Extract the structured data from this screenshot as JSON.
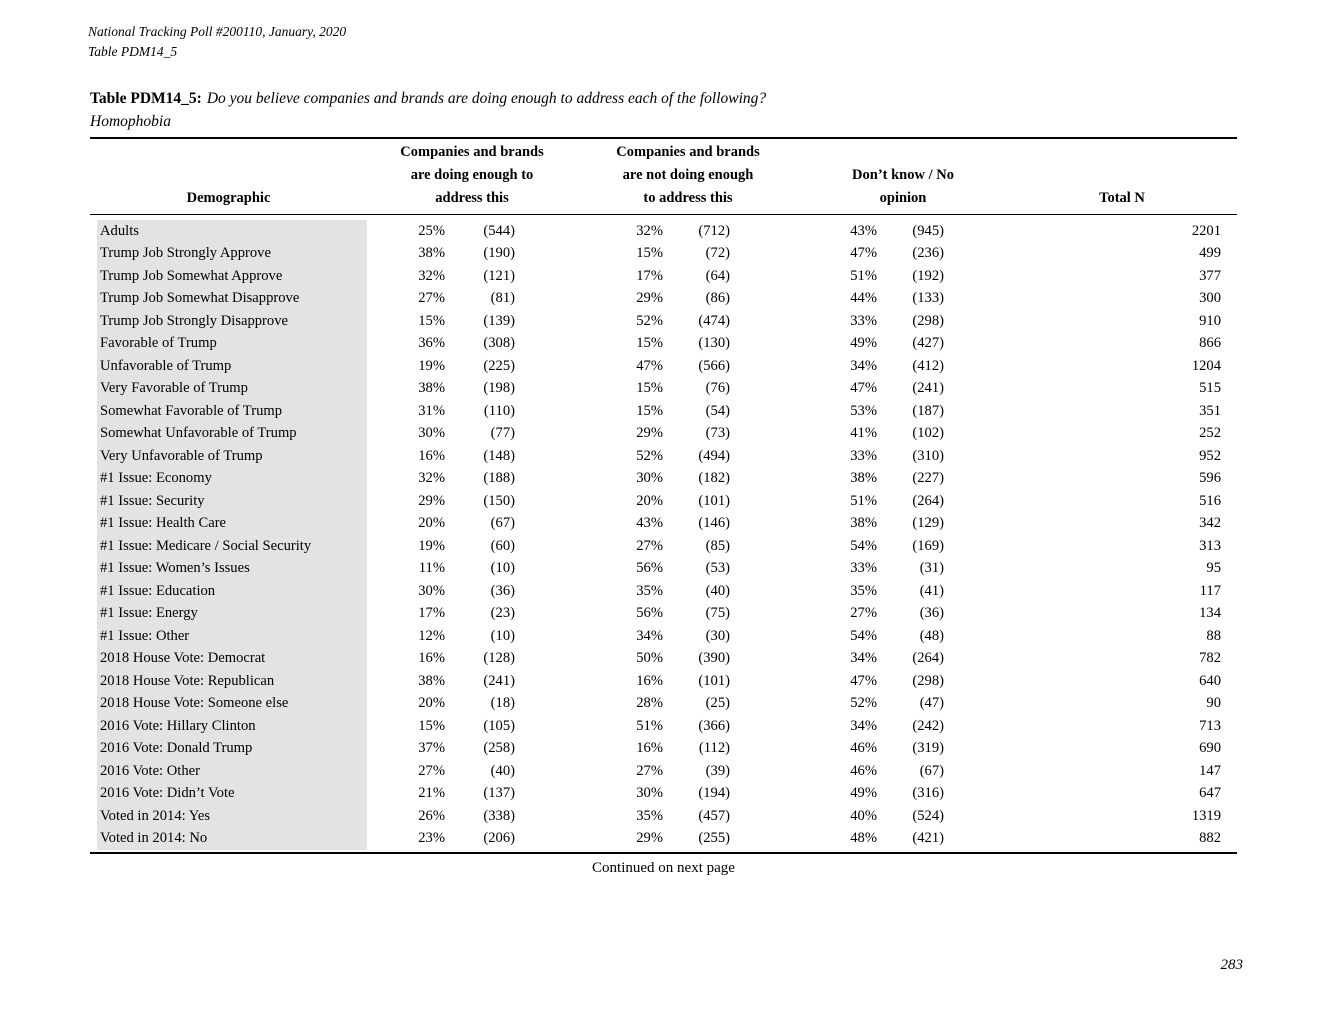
{
  "page": {
    "header_line1": "National Tracking Poll #200110, January, 2020",
    "header_line2": "Table PDM14_5",
    "title_prefix": "Table PDM14_5:",
    "title_question": "Do you believe companies and brands are doing enough to address each of the following?",
    "title_topic": "Homophobia",
    "continued": "Continued on next page",
    "page_number": "283"
  },
  "table": {
    "columns": {
      "demographic": "Demographic",
      "col1": "Companies and brands\nare doing enough to\naddress this",
      "col2": "Companies and brands\nare not doing enough\nto address this",
      "col3": "Don’t know / No\nopinion",
      "total": "Total N"
    },
    "rows": [
      {
        "demographic": "Adults",
        "pct1": "25%",
        "n1": "(544)",
        "pct2": "32%",
        "n2": "(712)",
        "pct3": "43%",
        "n3": "(945)",
        "total": "2201"
      },
      {
        "demographic": "Trump Job Strongly Approve",
        "pct1": "38%",
        "n1": "(190)",
        "pct2": "15%",
        "n2": "(72)",
        "pct3": "47%",
        "n3": "(236)",
        "total": "499"
      },
      {
        "demographic": "Trump Job Somewhat Approve",
        "pct1": "32%",
        "n1": "(121)",
        "pct2": "17%",
        "n2": "(64)",
        "pct3": "51%",
        "n3": "(192)",
        "total": "377"
      },
      {
        "demographic": "Trump Job Somewhat Disapprove",
        "pct1": "27%",
        "n1": "(81)",
        "pct2": "29%",
        "n2": "(86)",
        "pct3": "44%",
        "n3": "(133)",
        "total": "300"
      },
      {
        "demographic": "Trump Job Strongly Disapprove",
        "pct1": "15%",
        "n1": "(139)",
        "pct2": "52%",
        "n2": "(474)",
        "pct3": "33%",
        "n3": "(298)",
        "total": "910"
      },
      {
        "demographic": "Favorable of Trump",
        "pct1": "36%",
        "n1": "(308)",
        "pct2": "15%",
        "n2": "(130)",
        "pct3": "49%",
        "n3": "(427)",
        "total": "866"
      },
      {
        "demographic": "Unfavorable of Trump",
        "pct1": "19%",
        "n1": "(225)",
        "pct2": "47%",
        "n2": "(566)",
        "pct3": "34%",
        "n3": "(412)",
        "total": "1204"
      },
      {
        "demographic": "Very Favorable of Trump",
        "pct1": "38%",
        "n1": "(198)",
        "pct2": "15%",
        "n2": "(76)",
        "pct3": "47%",
        "n3": "(241)",
        "total": "515"
      },
      {
        "demographic": "Somewhat Favorable of Trump",
        "pct1": "31%",
        "n1": "(110)",
        "pct2": "15%",
        "n2": "(54)",
        "pct3": "53%",
        "n3": "(187)",
        "total": "351"
      },
      {
        "demographic": "Somewhat Unfavorable of Trump",
        "pct1": "30%",
        "n1": "(77)",
        "pct2": "29%",
        "n2": "(73)",
        "pct3": "41%",
        "n3": "(102)",
        "total": "252"
      },
      {
        "demographic": "Very Unfavorable of Trump",
        "pct1": "16%",
        "n1": "(148)",
        "pct2": "52%",
        "n2": "(494)",
        "pct3": "33%",
        "n3": "(310)",
        "total": "952"
      },
      {
        "demographic": "#1 Issue: Economy",
        "pct1": "32%",
        "n1": "(188)",
        "pct2": "30%",
        "n2": "(182)",
        "pct3": "38%",
        "n3": "(227)",
        "total": "596"
      },
      {
        "demographic": "#1 Issue: Security",
        "pct1": "29%",
        "n1": "(150)",
        "pct2": "20%",
        "n2": "(101)",
        "pct3": "51%",
        "n3": "(264)",
        "total": "516"
      },
      {
        "demographic": "#1 Issue: Health Care",
        "pct1": "20%",
        "n1": "(67)",
        "pct2": "43%",
        "n2": "(146)",
        "pct3": "38%",
        "n3": "(129)",
        "total": "342"
      },
      {
        "demographic": "#1 Issue: Medicare / Social Security",
        "pct1": "19%",
        "n1": "(60)",
        "pct2": "27%",
        "n2": "(85)",
        "pct3": "54%",
        "n3": "(169)",
        "total": "313"
      },
      {
        "demographic": "#1 Issue: Women’s Issues",
        "pct1": "11%",
        "n1": "(10)",
        "pct2": "56%",
        "n2": "(53)",
        "pct3": "33%",
        "n3": "(31)",
        "total": "95"
      },
      {
        "demographic": "#1 Issue: Education",
        "pct1": "30%",
        "n1": "(36)",
        "pct2": "35%",
        "n2": "(40)",
        "pct3": "35%",
        "n3": "(41)",
        "total": "117"
      },
      {
        "demographic": "#1 Issue: Energy",
        "pct1": "17%",
        "n1": "(23)",
        "pct2": "56%",
        "n2": "(75)",
        "pct3": "27%",
        "n3": "(36)",
        "total": "134"
      },
      {
        "demographic": "#1 Issue: Other",
        "pct1": "12%",
        "n1": "(10)",
        "pct2": "34%",
        "n2": "(30)",
        "pct3": "54%",
        "n3": "(48)",
        "total": "88"
      },
      {
        "demographic": "2018 House Vote: Democrat",
        "pct1": "16%",
        "n1": "(128)",
        "pct2": "50%",
        "n2": "(390)",
        "pct3": "34%",
        "n3": "(264)",
        "total": "782"
      },
      {
        "demographic": "2018 House Vote: Republican",
        "pct1": "38%",
        "n1": "(241)",
        "pct2": "16%",
        "n2": "(101)",
        "pct3": "47%",
        "n3": "(298)",
        "total": "640"
      },
      {
        "demographic": "2018 House Vote: Someone else",
        "pct1": "20%",
        "n1": "(18)",
        "pct2": "28%",
        "n2": "(25)",
        "pct3": "52%",
        "n3": "(47)",
        "total": "90"
      },
      {
        "demographic": "2016 Vote: Hillary Clinton",
        "pct1": "15%",
        "n1": "(105)",
        "pct2": "51%",
        "n2": "(366)",
        "pct3": "34%",
        "n3": "(242)",
        "total": "713"
      },
      {
        "demographic": "2016 Vote: Donald Trump",
        "pct1": "37%",
        "n1": "(258)",
        "pct2": "16%",
        "n2": "(112)",
        "pct3": "46%",
        "n3": "(319)",
        "total": "690"
      },
      {
        "demographic": "2016 Vote: Other",
        "pct1": "27%",
        "n1": "(40)",
        "pct2": "27%",
        "n2": "(39)",
        "pct3": "46%",
        "n3": "(67)",
        "total": "147"
      },
      {
        "demographic": "2016 Vote: Didn’t Vote",
        "pct1": "21%",
        "n1": "(137)",
        "pct2": "30%",
        "n2": "(194)",
        "pct3": "49%",
        "n3": "(316)",
        "total": "647"
      },
      {
        "demographic": "Voted in 2014: Yes",
        "pct1": "26%",
        "n1": "(338)",
        "pct2": "35%",
        "n2": "(457)",
        "pct3": "40%",
        "n3": "(524)",
        "total": "1319"
      },
      {
        "demographic": "Voted in 2014: No",
        "pct1": "23%",
        "n1": "(206)",
        "pct2": "29%",
        "n2": "(255)",
        "pct3": "48%",
        "n3": "(421)",
        "total": "882"
      }
    ]
  }
}
